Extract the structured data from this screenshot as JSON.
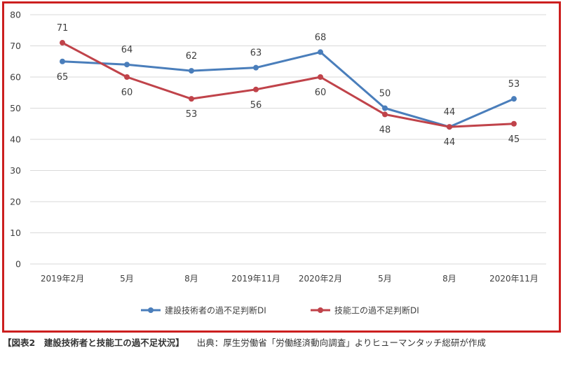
{
  "chart_data": {
    "type": "line",
    "categories": [
      "2019年2月",
      "5月",
      "8月",
      "2019年11月",
      "2020年2月",
      "5月",
      "8月",
      "2020年11月"
    ],
    "series": [
      {
        "name": "建設技術者の過不足判断DI",
        "color": "#4a7ebb",
        "values": [
          65,
          64,
          62,
          63,
          68,
          50,
          44,
          53
        ]
      },
      {
        "name": "技能工の過不足判断DI",
        "color": "#c0434a",
        "values": [
          71,
          60,
          53,
          56,
          60,
          48,
          44,
          45
        ]
      }
    ],
    "ylim": [
      0,
      80
    ],
    "yticks": [
      0,
      10,
      20,
      30,
      40,
      50,
      60,
      70,
      80
    ],
    "grid": true,
    "legend": "bottom",
    "xlabel": "",
    "ylabel": ""
  },
  "caption": {
    "title": "【図表2　建設技術者と技能工の過不足状況】",
    "source": "出典：厚生労働省「労働経済動向調査」よりヒューマンタッチ総研が作成"
  },
  "colors": {
    "frame": "#cc1f1f",
    "grid": "#d9d9d9"
  }
}
